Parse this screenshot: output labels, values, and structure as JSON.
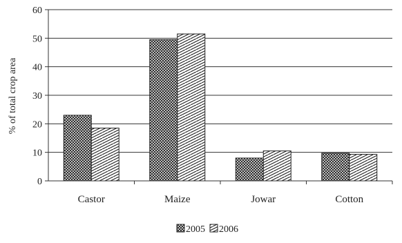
{
  "chart_data": {
    "type": "bar",
    "categories": [
      "Castor",
      "Maize",
      "Jowar",
      "Cotton"
    ],
    "series": [
      {
        "name": "2005",
        "values": [
          23.0,
          49.5,
          8.0,
          9.7
        ],
        "pattern": "crosshatch"
      },
      {
        "name": "2006",
        "values": [
          18.5,
          51.5,
          10.5,
          9.3
        ],
        "pattern": "diagonal"
      }
    ],
    "title": "",
    "xlabel": "",
    "ylabel": "% of total crop area",
    "ylim": [
      0,
      60
    ],
    "yticks": [
      0,
      10,
      20,
      30,
      40,
      50,
      60
    ],
    "grid": "horizontal",
    "legend_position": "bottom"
  }
}
